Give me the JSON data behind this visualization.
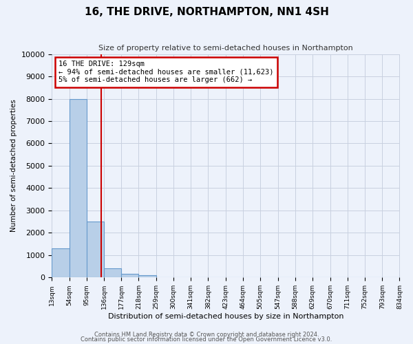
{
  "title": "16, THE DRIVE, NORTHAMPTON, NN1 4SH",
  "subtitle": "Size of property relative to semi-detached houses in Northampton",
  "xlabel": "Distribution of semi-detached houses by size in Northampton",
  "ylabel": "Number of semi-detached properties",
  "bin_labels": [
    "13sqm",
    "54sqm",
    "95sqm",
    "136sqm",
    "177sqm",
    "218sqm",
    "259sqm",
    "300sqm",
    "341sqm",
    "382sqm",
    "423sqm",
    "464sqm",
    "505sqm",
    "547sqm",
    "588sqm",
    "629sqm",
    "670sqm",
    "711sqm",
    "752sqm",
    "793sqm",
    "834sqm"
  ],
  "bar_values": [
    1300,
    8000,
    2500,
    400,
    150,
    100,
    0,
    0,
    0,
    0,
    0,
    0,
    0,
    0,
    0,
    0,
    0,
    0,
    0,
    0
  ],
  "bar_color": "#b8cfe8",
  "bar_edge_color": "#6699cc",
  "vline_x": 129,
  "vline_color": "#cc0000",
  "annotation_title": "16 THE DRIVE: 129sqm",
  "annotation_line1": "← 94% of semi-detached houses are smaller (11,623)",
  "annotation_line2": "5% of semi-detached houses are larger (662) →",
  "annotation_box_color": "#ffffff",
  "annotation_box_edge": "#cc0000",
  "ylim": [
    0,
    10000
  ],
  "yticks": [
    0,
    1000,
    2000,
    3000,
    4000,
    5000,
    6000,
    7000,
    8000,
    9000,
    10000
  ],
  "footnote1": "Contains HM Land Registry data © Crown copyright and database right 2024.",
  "footnote2": "Contains public sector information licensed under the Open Government Licence v3.0.",
  "bg_color": "#edf2fb",
  "grid_color": "#c8d0e0"
}
